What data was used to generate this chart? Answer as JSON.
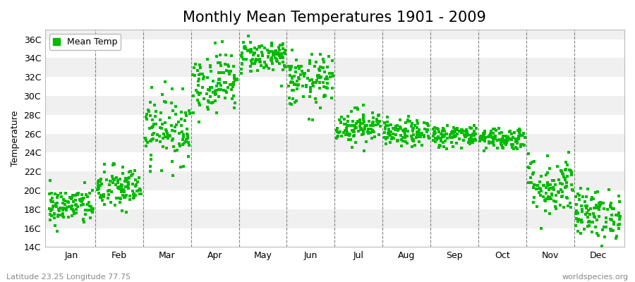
{
  "title": "Monthly Mean Temperatures 1901 - 2009",
  "ylabel": "Temperature",
  "ylim": [
    14,
    37
  ],
  "yticks": [
    14,
    16,
    18,
    20,
    22,
    24,
    26,
    28,
    30,
    32,
    34,
    36
  ],
  "ytick_labels": [
    "14C",
    "16C",
    "18C",
    "20C",
    "22C",
    "24C",
    "26C",
    "28C",
    "30C",
    "32C",
    "34C",
    "36C"
  ],
  "months": [
    "Jan",
    "Feb",
    "Mar",
    "Apr",
    "May",
    "Jun",
    "Jul",
    "Aug",
    "Sep",
    "Oct",
    "Nov",
    "Dec"
  ],
  "month_means": [
    18.3,
    20.2,
    26.5,
    31.5,
    34.2,
    31.5,
    26.8,
    26.0,
    25.8,
    25.5,
    20.5,
    17.5
  ],
  "month_stds": [
    1.0,
    1.2,
    1.8,
    1.6,
    0.9,
    1.4,
    0.9,
    0.7,
    0.6,
    0.6,
    1.6,
    1.3
  ],
  "n_years": 109,
  "marker_color": "#00BB00",
  "marker": "s",
  "marker_size": 2.5,
  "bg_color": "#FFFFFF",
  "plot_bg_color": "#F0F0F0",
  "band_color": "#FFFFFF",
  "grid_color": "#666666",
  "legend_label": "Mean Temp",
  "subtitle_left": "Latitude 23.25 Longitude 77.75",
  "subtitle_right": "worldspecies.org",
  "title_fontsize": 15,
  "label_fontsize": 9,
  "tick_fontsize": 9,
  "subtitle_fontsize": 8,
  "seed": 42
}
